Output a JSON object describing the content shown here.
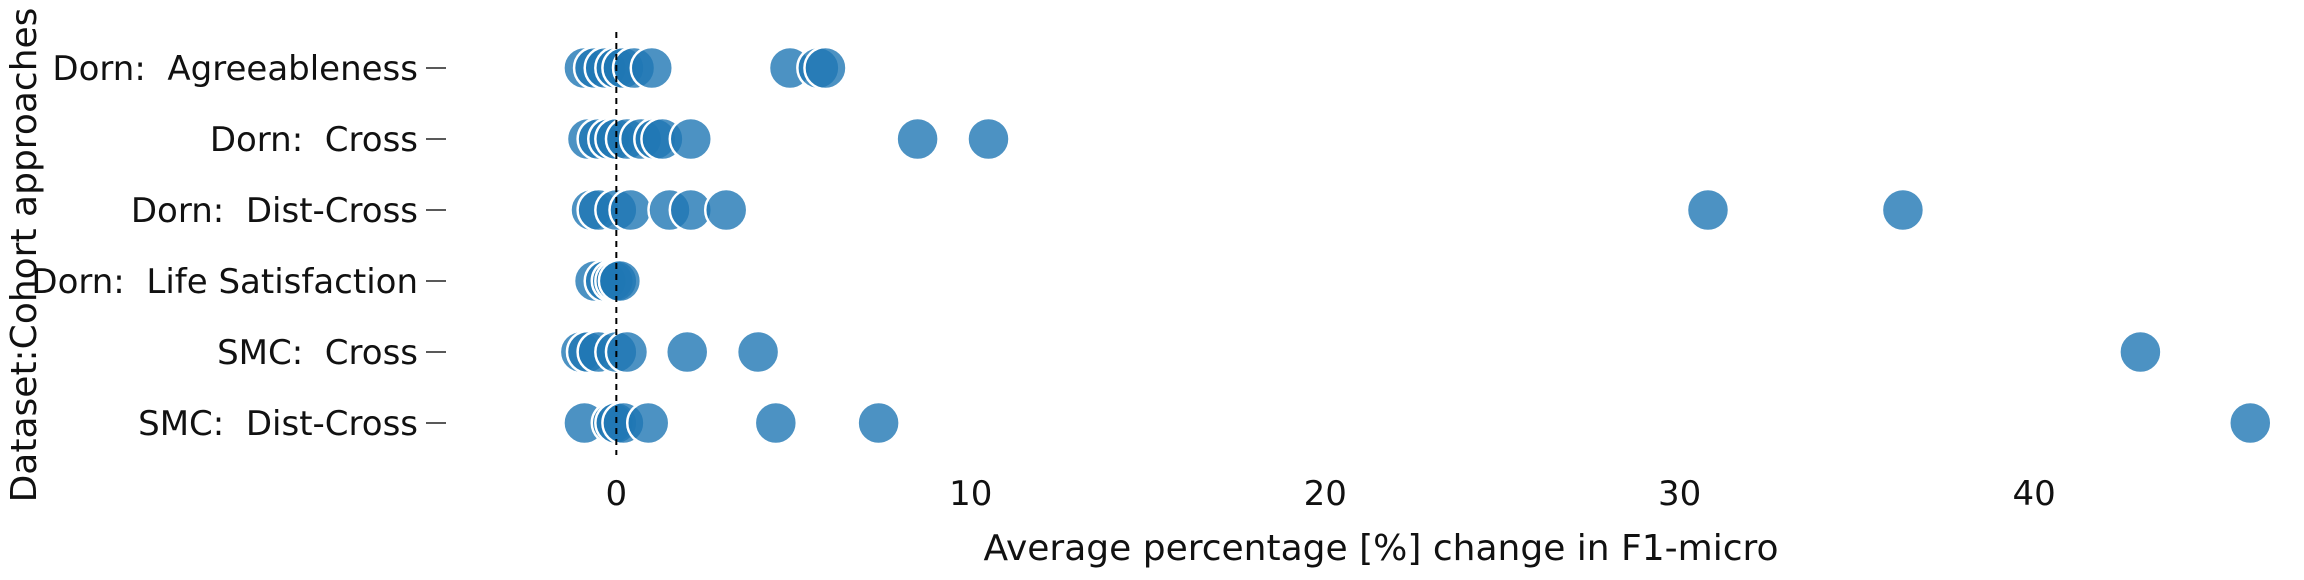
{
  "chart_data": {
    "type": "scatter",
    "orientation": "horizontal-categories",
    "xlabel": "Average percentage [%] change in F1-micro",
    "ylabel": "Dataset:Cohort approaches",
    "xlim": [
      -3,
      46.6
    ],
    "xticks": [
      0,
      10,
      20,
      30,
      40
    ],
    "reference_line_x": 0,
    "grid": false,
    "marker_color": "#1f77b4",
    "categories": [
      "Dorn:  Agreeableness",
      "Dorn:  Cross",
      "Dorn:  Dist-Cross",
      "Dorn:  Life Satisfaction",
      "SMC:  Cross",
      "SMC:  Dist-Cross"
    ],
    "points": [
      [
        -0.9,
        -0.6,
        -0.3,
        0.0,
        0.2,
        0.5,
        1.0,
        4.9,
        5.7,
        5.9
      ],
      [
        -0.8,
        -0.5,
        -0.2,
        0.0,
        0.3,
        0.7,
        1.1,
        1.3,
        2.1,
        8.5,
        10.5
      ],
      [
        -0.7,
        -0.5,
        0.0,
        0.4,
        1.5,
        2.1,
        3.1,
        30.8,
        36.3
      ],
      [
        -0.6,
        -0.3,
        -0.1,
        0.0,
        0.1
      ],
      [
        -1.0,
        -0.8,
        -0.5,
        0.0,
        0.3,
        2.0,
        4.0,
        43.0
      ],
      [
        -0.9,
        -0.1,
        0.0,
        0.2,
        0.9,
        4.5,
        7.4,
        46.1
      ]
    ]
  }
}
